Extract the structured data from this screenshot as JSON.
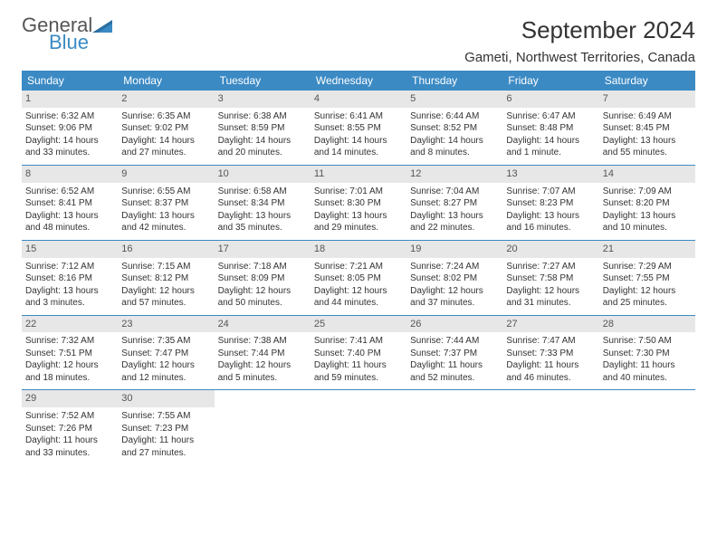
{
  "logo": {
    "word1": "General",
    "word2": "Blue",
    "tri_dark": "#2b6fa3",
    "tri_light": "#3b8ac4"
  },
  "title": "September 2024",
  "location": "Gameti, Northwest Territories, Canada",
  "colors": {
    "header_bg": "#3b8ac4",
    "header_text": "#ffffff",
    "daynum_bg": "#e7e7e7",
    "week_border": "#3b8ac4",
    "text": "#333333"
  },
  "dow": [
    "Sunday",
    "Monday",
    "Tuesday",
    "Wednesday",
    "Thursday",
    "Friday",
    "Saturday"
  ],
  "weeks": [
    [
      {
        "n": "1",
        "sr": "Sunrise: 6:32 AM",
        "ss": "Sunset: 9:06 PM",
        "d1": "Daylight: 14 hours",
        "d2": "and 33 minutes."
      },
      {
        "n": "2",
        "sr": "Sunrise: 6:35 AM",
        "ss": "Sunset: 9:02 PM",
        "d1": "Daylight: 14 hours",
        "d2": "and 27 minutes."
      },
      {
        "n": "3",
        "sr": "Sunrise: 6:38 AM",
        "ss": "Sunset: 8:59 PM",
        "d1": "Daylight: 14 hours",
        "d2": "and 20 minutes."
      },
      {
        "n": "4",
        "sr": "Sunrise: 6:41 AM",
        "ss": "Sunset: 8:55 PM",
        "d1": "Daylight: 14 hours",
        "d2": "and 14 minutes."
      },
      {
        "n": "5",
        "sr": "Sunrise: 6:44 AM",
        "ss": "Sunset: 8:52 PM",
        "d1": "Daylight: 14 hours",
        "d2": "and 8 minutes."
      },
      {
        "n": "6",
        "sr": "Sunrise: 6:47 AM",
        "ss": "Sunset: 8:48 PM",
        "d1": "Daylight: 14 hours",
        "d2": "and 1 minute."
      },
      {
        "n": "7",
        "sr": "Sunrise: 6:49 AM",
        "ss": "Sunset: 8:45 PM",
        "d1": "Daylight: 13 hours",
        "d2": "and 55 minutes."
      }
    ],
    [
      {
        "n": "8",
        "sr": "Sunrise: 6:52 AM",
        "ss": "Sunset: 8:41 PM",
        "d1": "Daylight: 13 hours",
        "d2": "and 48 minutes."
      },
      {
        "n": "9",
        "sr": "Sunrise: 6:55 AM",
        "ss": "Sunset: 8:37 PM",
        "d1": "Daylight: 13 hours",
        "d2": "and 42 minutes."
      },
      {
        "n": "10",
        "sr": "Sunrise: 6:58 AM",
        "ss": "Sunset: 8:34 PM",
        "d1": "Daylight: 13 hours",
        "d2": "and 35 minutes."
      },
      {
        "n": "11",
        "sr": "Sunrise: 7:01 AM",
        "ss": "Sunset: 8:30 PM",
        "d1": "Daylight: 13 hours",
        "d2": "and 29 minutes."
      },
      {
        "n": "12",
        "sr": "Sunrise: 7:04 AM",
        "ss": "Sunset: 8:27 PM",
        "d1": "Daylight: 13 hours",
        "d2": "and 22 minutes."
      },
      {
        "n": "13",
        "sr": "Sunrise: 7:07 AM",
        "ss": "Sunset: 8:23 PM",
        "d1": "Daylight: 13 hours",
        "d2": "and 16 minutes."
      },
      {
        "n": "14",
        "sr": "Sunrise: 7:09 AM",
        "ss": "Sunset: 8:20 PM",
        "d1": "Daylight: 13 hours",
        "d2": "and 10 minutes."
      }
    ],
    [
      {
        "n": "15",
        "sr": "Sunrise: 7:12 AM",
        "ss": "Sunset: 8:16 PM",
        "d1": "Daylight: 13 hours",
        "d2": "and 3 minutes."
      },
      {
        "n": "16",
        "sr": "Sunrise: 7:15 AM",
        "ss": "Sunset: 8:12 PM",
        "d1": "Daylight: 12 hours",
        "d2": "and 57 minutes."
      },
      {
        "n": "17",
        "sr": "Sunrise: 7:18 AM",
        "ss": "Sunset: 8:09 PM",
        "d1": "Daylight: 12 hours",
        "d2": "and 50 minutes."
      },
      {
        "n": "18",
        "sr": "Sunrise: 7:21 AM",
        "ss": "Sunset: 8:05 PM",
        "d1": "Daylight: 12 hours",
        "d2": "and 44 minutes."
      },
      {
        "n": "19",
        "sr": "Sunrise: 7:24 AM",
        "ss": "Sunset: 8:02 PM",
        "d1": "Daylight: 12 hours",
        "d2": "and 37 minutes."
      },
      {
        "n": "20",
        "sr": "Sunrise: 7:27 AM",
        "ss": "Sunset: 7:58 PM",
        "d1": "Daylight: 12 hours",
        "d2": "and 31 minutes."
      },
      {
        "n": "21",
        "sr": "Sunrise: 7:29 AM",
        "ss": "Sunset: 7:55 PM",
        "d1": "Daylight: 12 hours",
        "d2": "and 25 minutes."
      }
    ],
    [
      {
        "n": "22",
        "sr": "Sunrise: 7:32 AM",
        "ss": "Sunset: 7:51 PM",
        "d1": "Daylight: 12 hours",
        "d2": "and 18 minutes."
      },
      {
        "n": "23",
        "sr": "Sunrise: 7:35 AM",
        "ss": "Sunset: 7:47 PM",
        "d1": "Daylight: 12 hours",
        "d2": "and 12 minutes."
      },
      {
        "n": "24",
        "sr": "Sunrise: 7:38 AM",
        "ss": "Sunset: 7:44 PM",
        "d1": "Daylight: 12 hours",
        "d2": "and 5 minutes."
      },
      {
        "n": "25",
        "sr": "Sunrise: 7:41 AM",
        "ss": "Sunset: 7:40 PM",
        "d1": "Daylight: 11 hours",
        "d2": "and 59 minutes."
      },
      {
        "n": "26",
        "sr": "Sunrise: 7:44 AM",
        "ss": "Sunset: 7:37 PM",
        "d1": "Daylight: 11 hours",
        "d2": "and 52 minutes."
      },
      {
        "n": "27",
        "sr": "Sunrise: 7:47 AM",
        "ss": "Sunset: 7:33 PM",
        "d1": "Daylight: 11 hours",
        "d2": "and 46 minutes."
      },
      {
        "n": "28",
        "sr": "Sunrise: 7:50 AM",
        "ss": "Sunset: 7:30 PM",
        "d1": "Daylight: 11 hours",
        "d2": "and 40 minutes."
      }
    ],
    [
      {
        "n": "29",
        "sr": "Sunrise: 7:52 AM",
        "ss": "Sunset: 7:26 PM",
        "d1": "Daylight: 11 hours",
        "d2": "and 33 minutes."
      },
      {
        "n": "30",
        "sr": "Sunrise: 7:55 AM",
        "ss": "Sunset: 7:23 PM",
        "d1": "Daylight: 11 hours",
        "d2": "and 27 minutes."
      },
      null,
      null,
      null,
      null,
      null
    ]
  ]
}
